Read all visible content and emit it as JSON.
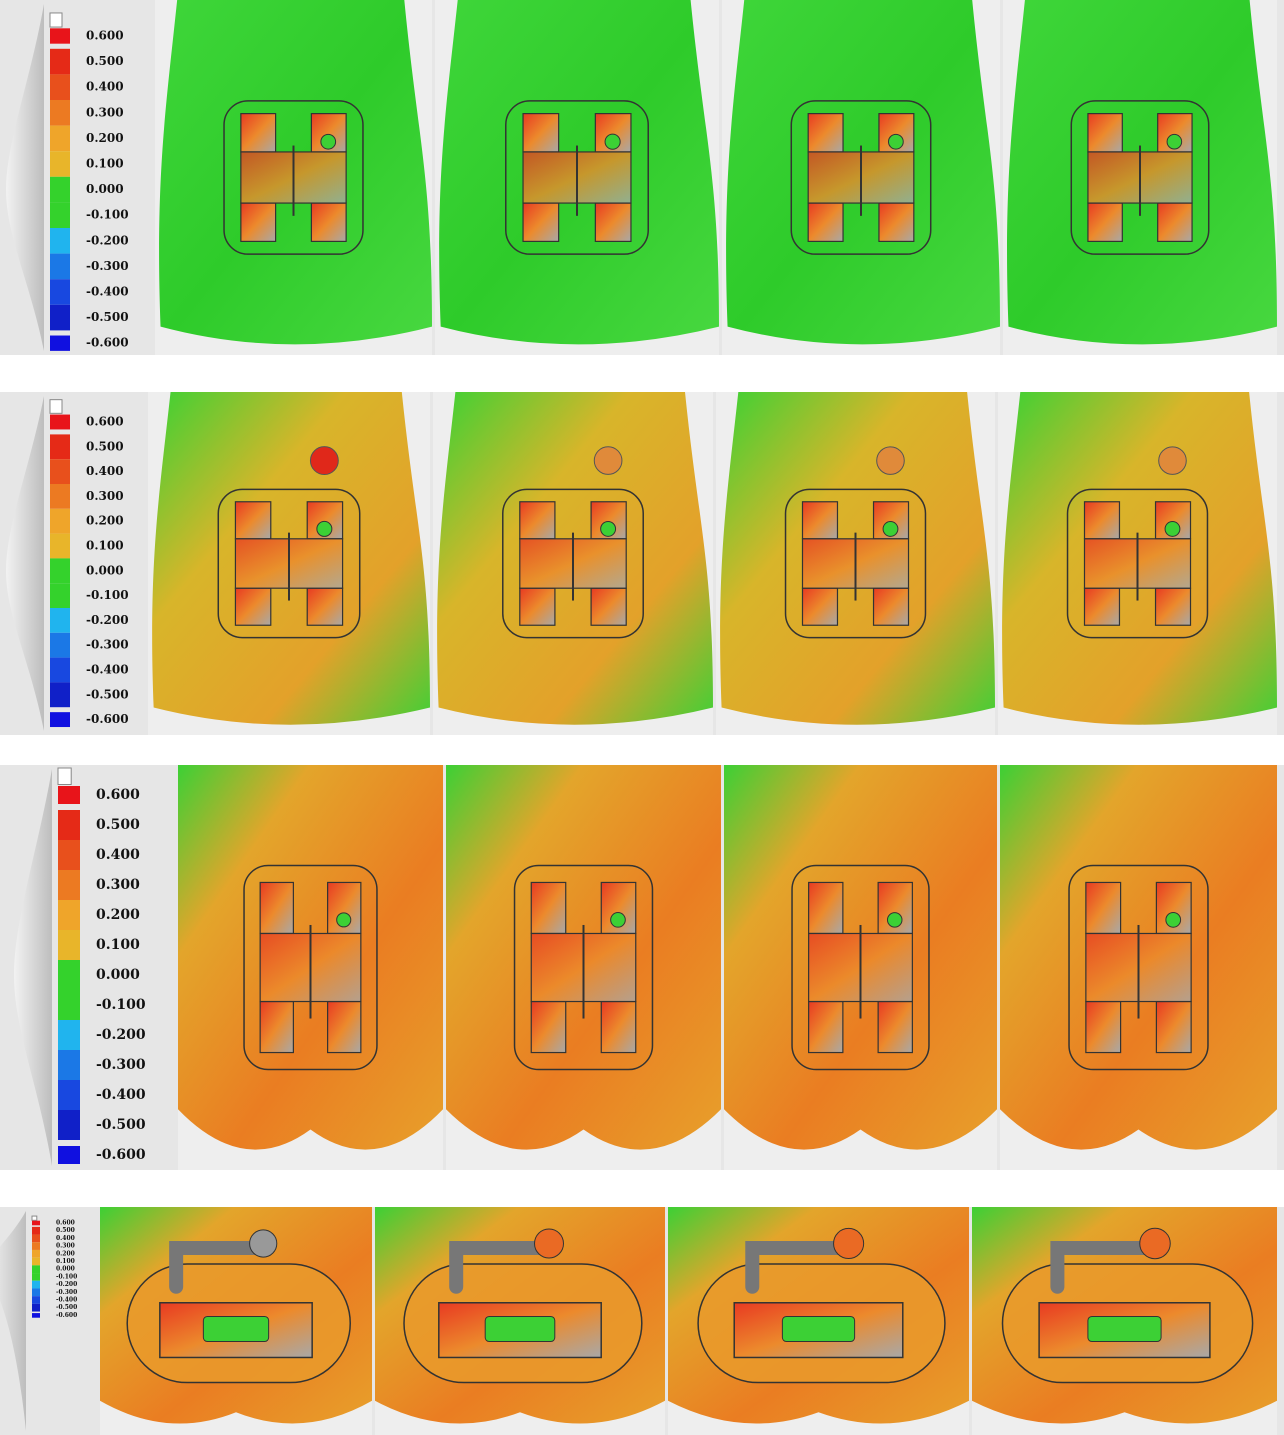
{
  "scale_labels": [
    "0.600",
    "0.500",
    "0.400",
    "0.300",
    "0.200",
    "0.100",
    "0.000",
    "-0.100",
    "-0.200",
    "-0.300",
    "-0.400",
    "-0.500",
    "-0.600"
  ]
}
